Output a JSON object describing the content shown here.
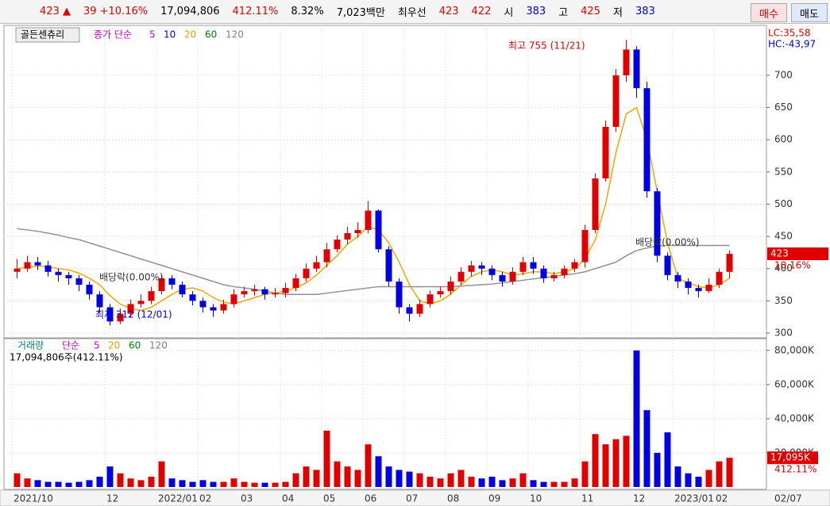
{
  "header": {
    "items": [
      {
        "text": "423 ▲",
        "color": "#e00000"
      },
      {
        "text": "39 +10.16%",
        "color": "#e00000"
      },
      {
        "text": "17,094,806",
        "color": "#000000"
      },
      {
        "text": "412.11%",
        "color": "#e00000"
      },
      {
        "text": "8.32%",
        "color": "#000000"
      },
      {
        "text": "7,023백만",
        "color": "#000000"
      },
      {
        "text": "최우선",
        "color": "#000000"
      },
      {
        "text": "423",
        "color": "#e00000"
      },
      {
        "text": "422",
        "color": "#e00000"
      },
      {
        "text": "시",
        "color": "#000000"
      },
      {
        "text": "383",
        "color": "#0000e0"
      },
      {
        "text": "고",
        "color": "#000000"
      },
      {
        "text": "425",
        "color": "#e00000"
      },
      {
        "text": "저",
        "color": "#000000"
      },
      {
        "text": "383",
        "color": "#0000e0"
      }
    ],
    "buy": "매수",
    "sell": "매도"
  },
  "chart_data": [
    {
      "type": "candlestick",
      "title": "골든센츄리",
      "ma_legend": [
        "종가 단순",
        "5",
        "10",
        "20",
        "60",
        "120"
      ],
      "ma_legend_colors": [
        "#d000d0",
        "#d000d0",
        "#0000e0",
        "#e0a000",
        "#008000",
        "#808080"
      ],
      "lc": "LC:35,58",
      "hc": "HC:-43,97",
      "high_note": "최고 755 (11/21)",
      "low_note": "최저 312 (12/01)",
      "ex_div": "배당락(0.00%)",
      "last_price": "423",
      "last_change": "10.16%",
      "x_end_label": "02/07",
      "categories": [
        "2021/10",
        null,
        null,
        null,
        null,
        null,
        null,
        null,
        null,
        "12",
        null,
        null,
        null,
        null,
        "2022/01",
        null,
        null,
        null,
        "02",
        null,
        null,
        null,
        "03",
        null,
        null,
        null,
        "04",
        null,
        null,
        null,
        "05",
        null,
        null,
        null,
        "06",
        null,
        null,
        null,
        "07",
        null,
        null,
        null,
        "08",
        null,
        null,
        null,
        "09",
        null,
        null,
        null,
        "10",
        null,
        null,
        null,
        null,
        "11",
        null,
        null,
        null,
        null,
        "12",
        null,
        null,
        null,
        "2023/01",
        null,
        null,
        null,
        "02",
        null
      ],
      "open": [
        395,
        400,
        410,
        405,
        395,
        390,
        385,
        375,
        360,
        340,
        318,
        330,
        345,
        350,
        365,
        385,
        375,
        360,
        350,
        340,
        335,
        345,
        360,
        365,
        368,
        360,
        362,
        370,
        385,
        400,
        410,
        430,
        445,
        455,
        460,
        490,
        430,
        380,
        340,
        330,
        345,
        360,
        365,
        380,
        395,
        405,
        400,
        390,
        380,
        395,
        410,
        400,
        385,
        390,
        400,
        410,
        460,
        540,
        620,
        700,
        740,
        680,
        520,
        420,
        390,
        380,
        370,
        365,
        375,
        395
      ],
      "high": [
        415,
        420,
        418,
        412,
        400,
        395,
        390,
        380,
        365,
        345,
        338,
        352,
        360,
        372,
        392,
        390,
        380,
        365,
        355,
        345,
        352,
        368,
        372,
        375,
        372,
        370,
        378,
        392,
        408,
        420,
        440,
        452,
        465,
        472,
        505,
        492,
        435,
        385,
        345,
        352,
        366,
        372,
        388,
        402,
        412,
        410,
        405,
        395,
        402,
        418,
        418,
        405,
        395,
        405,
        415,
        468,
        548,
        630,
        710,
        755,
        745,
        690,
        525,
        425,
        395,
        385,
        375,
        385,
        400,
        428
      ],
      "low": [
        385,
        395,
        398,
        388,
        380,
        375,
        365,
        352,
        332,
        312,
        314,
        325,
        340,
        345,
        360,
        368,
        355,
        343,
        332,
        325,
        330,
        340,
        355,
        358,
        352,
        355,
        355,
        365,
        380,
        395,
        402,
        425,
        438,
        448,
        455,
        425,
        372,
        330,
        318,
        325,
        340,
        355,
        360,
        375,
        388,
        390,
        382,
        372,
        375,
        390,
        392,
        378,
        380,
        385,
        395,
        402,
        455,
        535,
        612,
        690,
        665,
        510,
        410,
        382,
        370,
        360,
        355,
        362,
        370,
        385
      ],
      "close": [
        400,
        410,
        405,
        395,
        390,
        385,
        375,
        360,
        340,
        318,
        330,
        345,
        350,
        365,
        385,
        375,
        360,
        350,
        340,
        335,
        345,
        360,
        365,
        368,
        360,
        362,
        370,
        385,
        400,
        410,
        430,
        445,
        455,
        460,
        490,
        430,
        380,
        340,
        330,
        345,
        360,
        365,
        380,
        395,
        405,
        400,
        390,
        380,
        395,
        410,
        400,
        385,
        390,
        400,
        410,
        460,
        540,
        620,
        700,
        740,
        680,
        520,
        420,
        390,
        380,
        370,
        365,
        375,
        395,
        423
      ],
      "up_color": "#e00000",
      "down_color": "#0000e0",
      "series": [
        {
          "color": "#f0a800",
          "values": [
            400,
            402,
            404,
            403,
            400,
            398,
            393,
            385,
            375,
            358,
            345,
            338,
            335,
            340,
            350,
            360,
            368,
            370,
            365,
            355,
            348,
            345,
            350,
            355,
            360,
            362,
            365,
            370,
            378,
            390,
            405,
            420,
            438,
            450,
            465,
            460,
            440,
            410,
            375,
            350,
            345,
            350,
            360,
            375,
            388,
            395,
            398,
            395,
            390,
            392,
            395,
            395,
            392,
            395,
            400,
            415,
            445,
            500,
            580,
            640,
            650,
            600,
            520,
            440,
            385,
            378,
            372,
            370,
            375,
            385
          ]
        },
        {
          "color": "#909090",
          "values": [
            462,
            460,
            458,
            455,
            452,
            448,
            445,
            440,
            435,
            430,
            425,
            420,
            415,
            410,
            405,
            400,
            395,
            390,
            385,
            380,
            375,
            372,
            370,
            368,
            365,
            362,
            360,
            360,
            360,
            360,
            362,
            364,
            366,
            368,
            370,
            372,
            372,
            372,
            372,
            372,
            372,
            372,
            372,
            373,
            374,
            375,
            376,
            378,
            380,
            382,
            384,
            386,
            388,
            390,
            392,
            395,
            400,
            405,
            410,
            420,
            428,
            432,
            435,
            436,
            436,
            436,
            436,
            436,
            436,
            436
          ]
        }
      ],
      "ylim": [
        295,
        775
      ],
      "yticks": [
        300,
        350,
        400,
        450,
        500,
        550,
        600,
        650,
        700
      ],
      "grid": true
    },
    {
      "type": "bar",
      "title": "거래량",
      "legend": [
        "단순",
        "5",
        "20",
        "60",
        "120"
      ],
      "legend_colors": [
        "#d000d0",
        "#d000d0",
        "#e0a000",
        "#008000",
        "#808080"
      ],
      "subtitle": "17,094,806주(412.11%)",
      "last_volume": "17,095K",
      "last_ratio": "412.11%",
      "values": [
        8000,
        5000,
        4000,
        3000,
        3000,
        2500,
        3000,
        4000,
        6000,
        12000,
        8000,
        5000,
        4000,
        6000,
        15000,
        5000,
        4000,
        3000,
        4000,
        3000,
        3000,
        5000,
        3000,
        2500,
        2500,
        2500,
        3000,
        8000,
        12000,
        10000,
        33000,
        15000,
        12000,
        10000,
        25000,
        18000,
        12000,
        10000,
        9000,
        8000,
        6000,
        5000,
        8000,
        10000,
        6000,
        5000,
        6000,
        4000,
        5000,
        8000,
        4000,
        3000,
        3000,
        3000,
        5000,
        15000,
        31000,
        25000,
        28000,
        30000,
        80000,
        45000,
        20000,
        32000,
        12000,
        8000,
        6000,
        10000,
        15000,
        17095
      ],
      "ylim": [
        0,
        85500
      ],
      "yticks": [
        {
          "value": 20000,
          "label": "20,000K"
        },
        {
          "value": 40000,
          "label": "40,000K"
        },
        {
          "value": 60000,
          "label": "60,000K"
        },
        {
          "value": 80000,
          "label": "80,000K"
        }
      ],
      "grid": true
    }
  ]
}
